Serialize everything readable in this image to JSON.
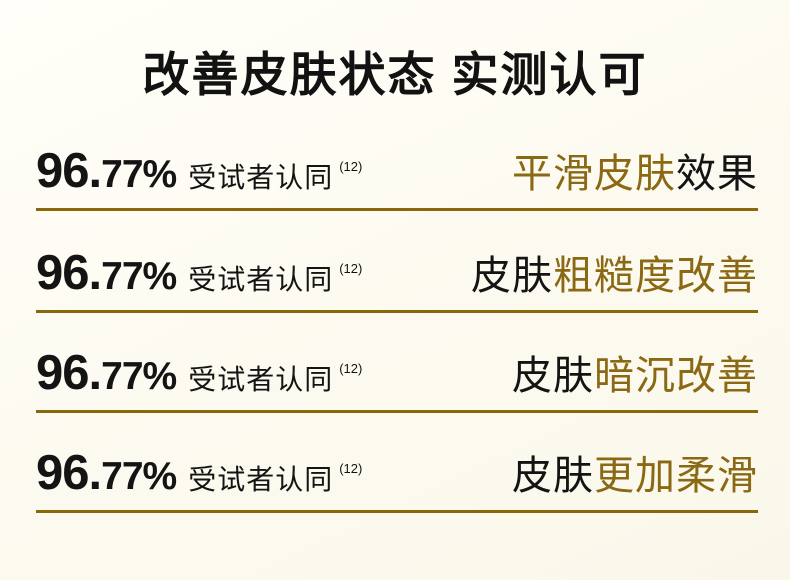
{
  "page": {
    "title": "改善皮肤状态 实测认可",
    "background": "#fcfaf0"
  },
  "colors": {
    "gold_text": "#8b6914",
    "divider_line": "#8a6708",
    "black_text": "#141414"
  },
  "rows": [
    {
      "percent_big": "96.",
      "percent_small": "77%",
      "label": "受试者认同",
      "footnote": "(12)",
      "benefit_part1": "平滑皮肤",
      "benefit_part2": "效果"
    },
    {
      "percent_big": "96.",
      "percent_small": "77%",
      "label": "受试者认同",
      "footnote": "(12)",
      "benefit_part1": "皮肤",
      "benefit_part2": "粗糙度改善"
    },
    {
      "percent_big": "96.",
      "percent_small": "77%",
      "label": "受试者认同",
      "footnote": "(12)",
      "benefit_part1": "皮肤",
      "benefit_part2": "暗沉改善"
    },
    {
      "percent_big": "96.",
      "percent_small": "77%",
      "label": "受试者认同",
      "footnote": "(12)",
      "benefit_part1": "皮肤",
      "benefit_part2": "更加柔滑"
    }
  ]
}
